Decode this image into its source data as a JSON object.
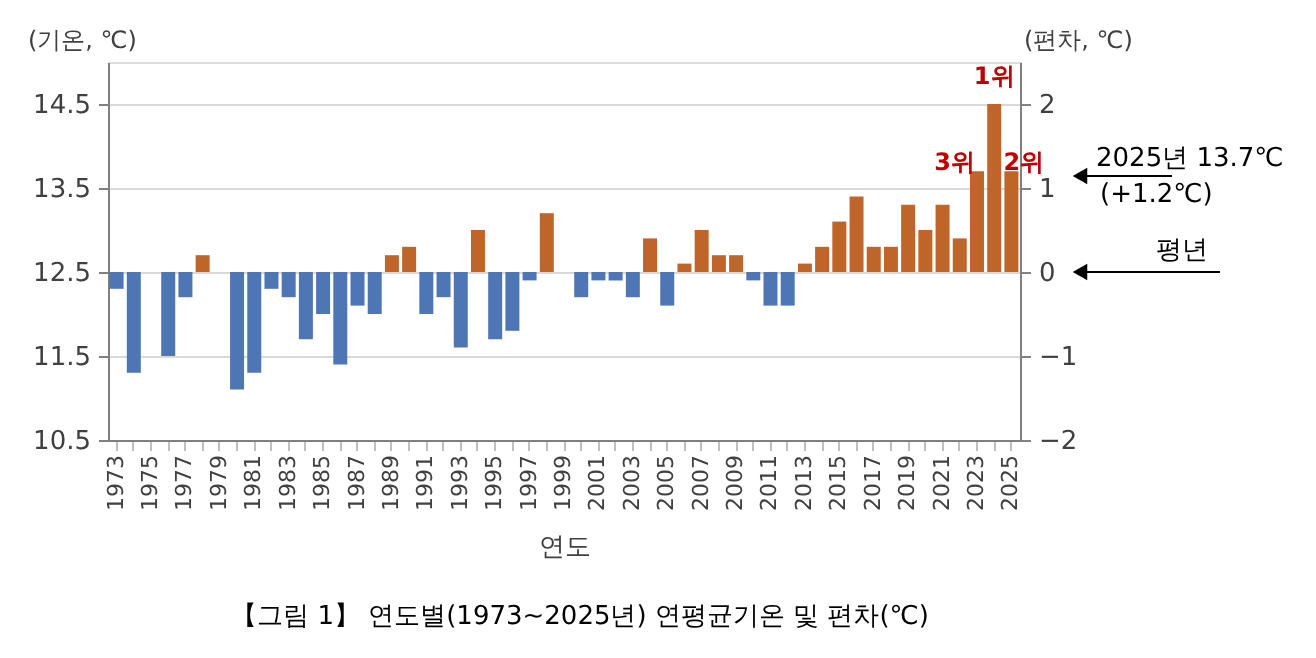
{
  "chart_data": {
    "type": "bar",
    "xlabel": "연도",
    "ylabel": "(기온, ℃)",
    "y2label": "(편차, ℃)",
    "categories": [
      "1973",
      null,
      "1975",
      null,
      "1977",
      null,
      "1979",
      null,
      "1981",
      null,
      "1983",
      null,
      "1985",
      null,
      "1987",
      null,
      "1989",
      null,
      "1991",
      null,
      "1993",
      null,
      "1995",
      null,
      "1997",
      null,
      "1999",
      null,
      "2001",
      null,
      "2003",
      null,
      "2005",
      null,
      "2007",
      null,
      "2009",
      null,
      "2011",
      null,
      "2013",
      null,
      "2015",
      null,
      "2017",
      null,
      "2019",
      null,
      "2021",
      null,
      "2023",
      null,
      "2025"
    ],
    "series": [
      {
        "axis": "y2",
        "values": [
          -0.2,
          -1.2,
          0,
          -1.0,
          -0.3,
          0.2,
          0,
          -1.4,
          -1.2,
          -0.2,
          -0.3,
          -0.8,
          -0.5,
          -1.1,
          -0.4,
          -0.5,
          0.2,
          0.3,
          -0.5,
          -0.3,
          -0.9,
          0.5,
          -0.8,
          -0.7,
          -0.1,
          0.7,
          0,
          -0.3,
          -0.1,
          -0.1,
          -0.3,
          0.4,
          -0.4,
          0.1,
          0.5,
          0.2,
          0.2,
          -0.1,
          -0.4,
          -0.4,
          0.1,
          0.3,
          0.6,
          0.9,
          0.3,
          0.3,
          0.8,
          0.5,
          0.8,
          0.4,
          1.2,
          2.0,
          1.2
        ],
        "colors": [
          "#4f76b4",
          "#4f76b4",
          "#4f76b4",
          "#4f76b4",
          "#4f76b4",
          "#c0652a",
          "#4f76b4",
          "#4f76b4",
          "#4f76b4",
          "#4f76b4",
          "#4f76b4",
          "#4f76b4",
          "#4f76b4",
          "#4f76b4",
          "#4f76b4",
          "#4f76b4",
          "#c0652a",
          "#c0652a",
          "#4f76b4",
          "#4f76b4",
          "#4f76b4",
          "#c0652a",
          "#4f76b4",
          "#4f76b4",
          "#4f76b4",
          "#c0652a",
          "#4f76b4",
          "#4f76b4",
          "#4f76b4",
          "#4f76b4",
          "#4f76b4",
          "#c0652a",
          "#4f76b4",
          "#c0652a",
          "#c0652a",
          "#c0652a",
          "#c0652a",
          "#4f76b4",
          "#4f76b4",
          "#4f76b4",
          "#c0652a",
          "#c0652a",
          "#c0652a",
          "#c0652a",
          "#c0652a",
          "#c0652a",
          "#c0652a",
          "#c0652a",
          "#c0652a",
          "#c0652a",
          "#c0652a",
          "#c0652a",
          "#c0652a"
        ]
      }
    ],
    "ylim": [
      10.5,
      15.0
    ],
    "yticks": [
      10.5,
      11.5,
      12.5,
      13.5,
      14.5
    ],
    "y2lim": [
      -2,
      2.5
    ],
    "y2ticks": [
      -2,
      -1,
      0,
      1,
      2
    ],
    "grid": "y",
    "annotations": [
      "1위",
      "3위",
      "2위",
      "2025년 13.7℃",
      "(+1.2℃)",
      "평년",
      "【그림 1】 연도별(1973~2025년) 연평균기온 및 편차(℃)"
    ]
  }
}
